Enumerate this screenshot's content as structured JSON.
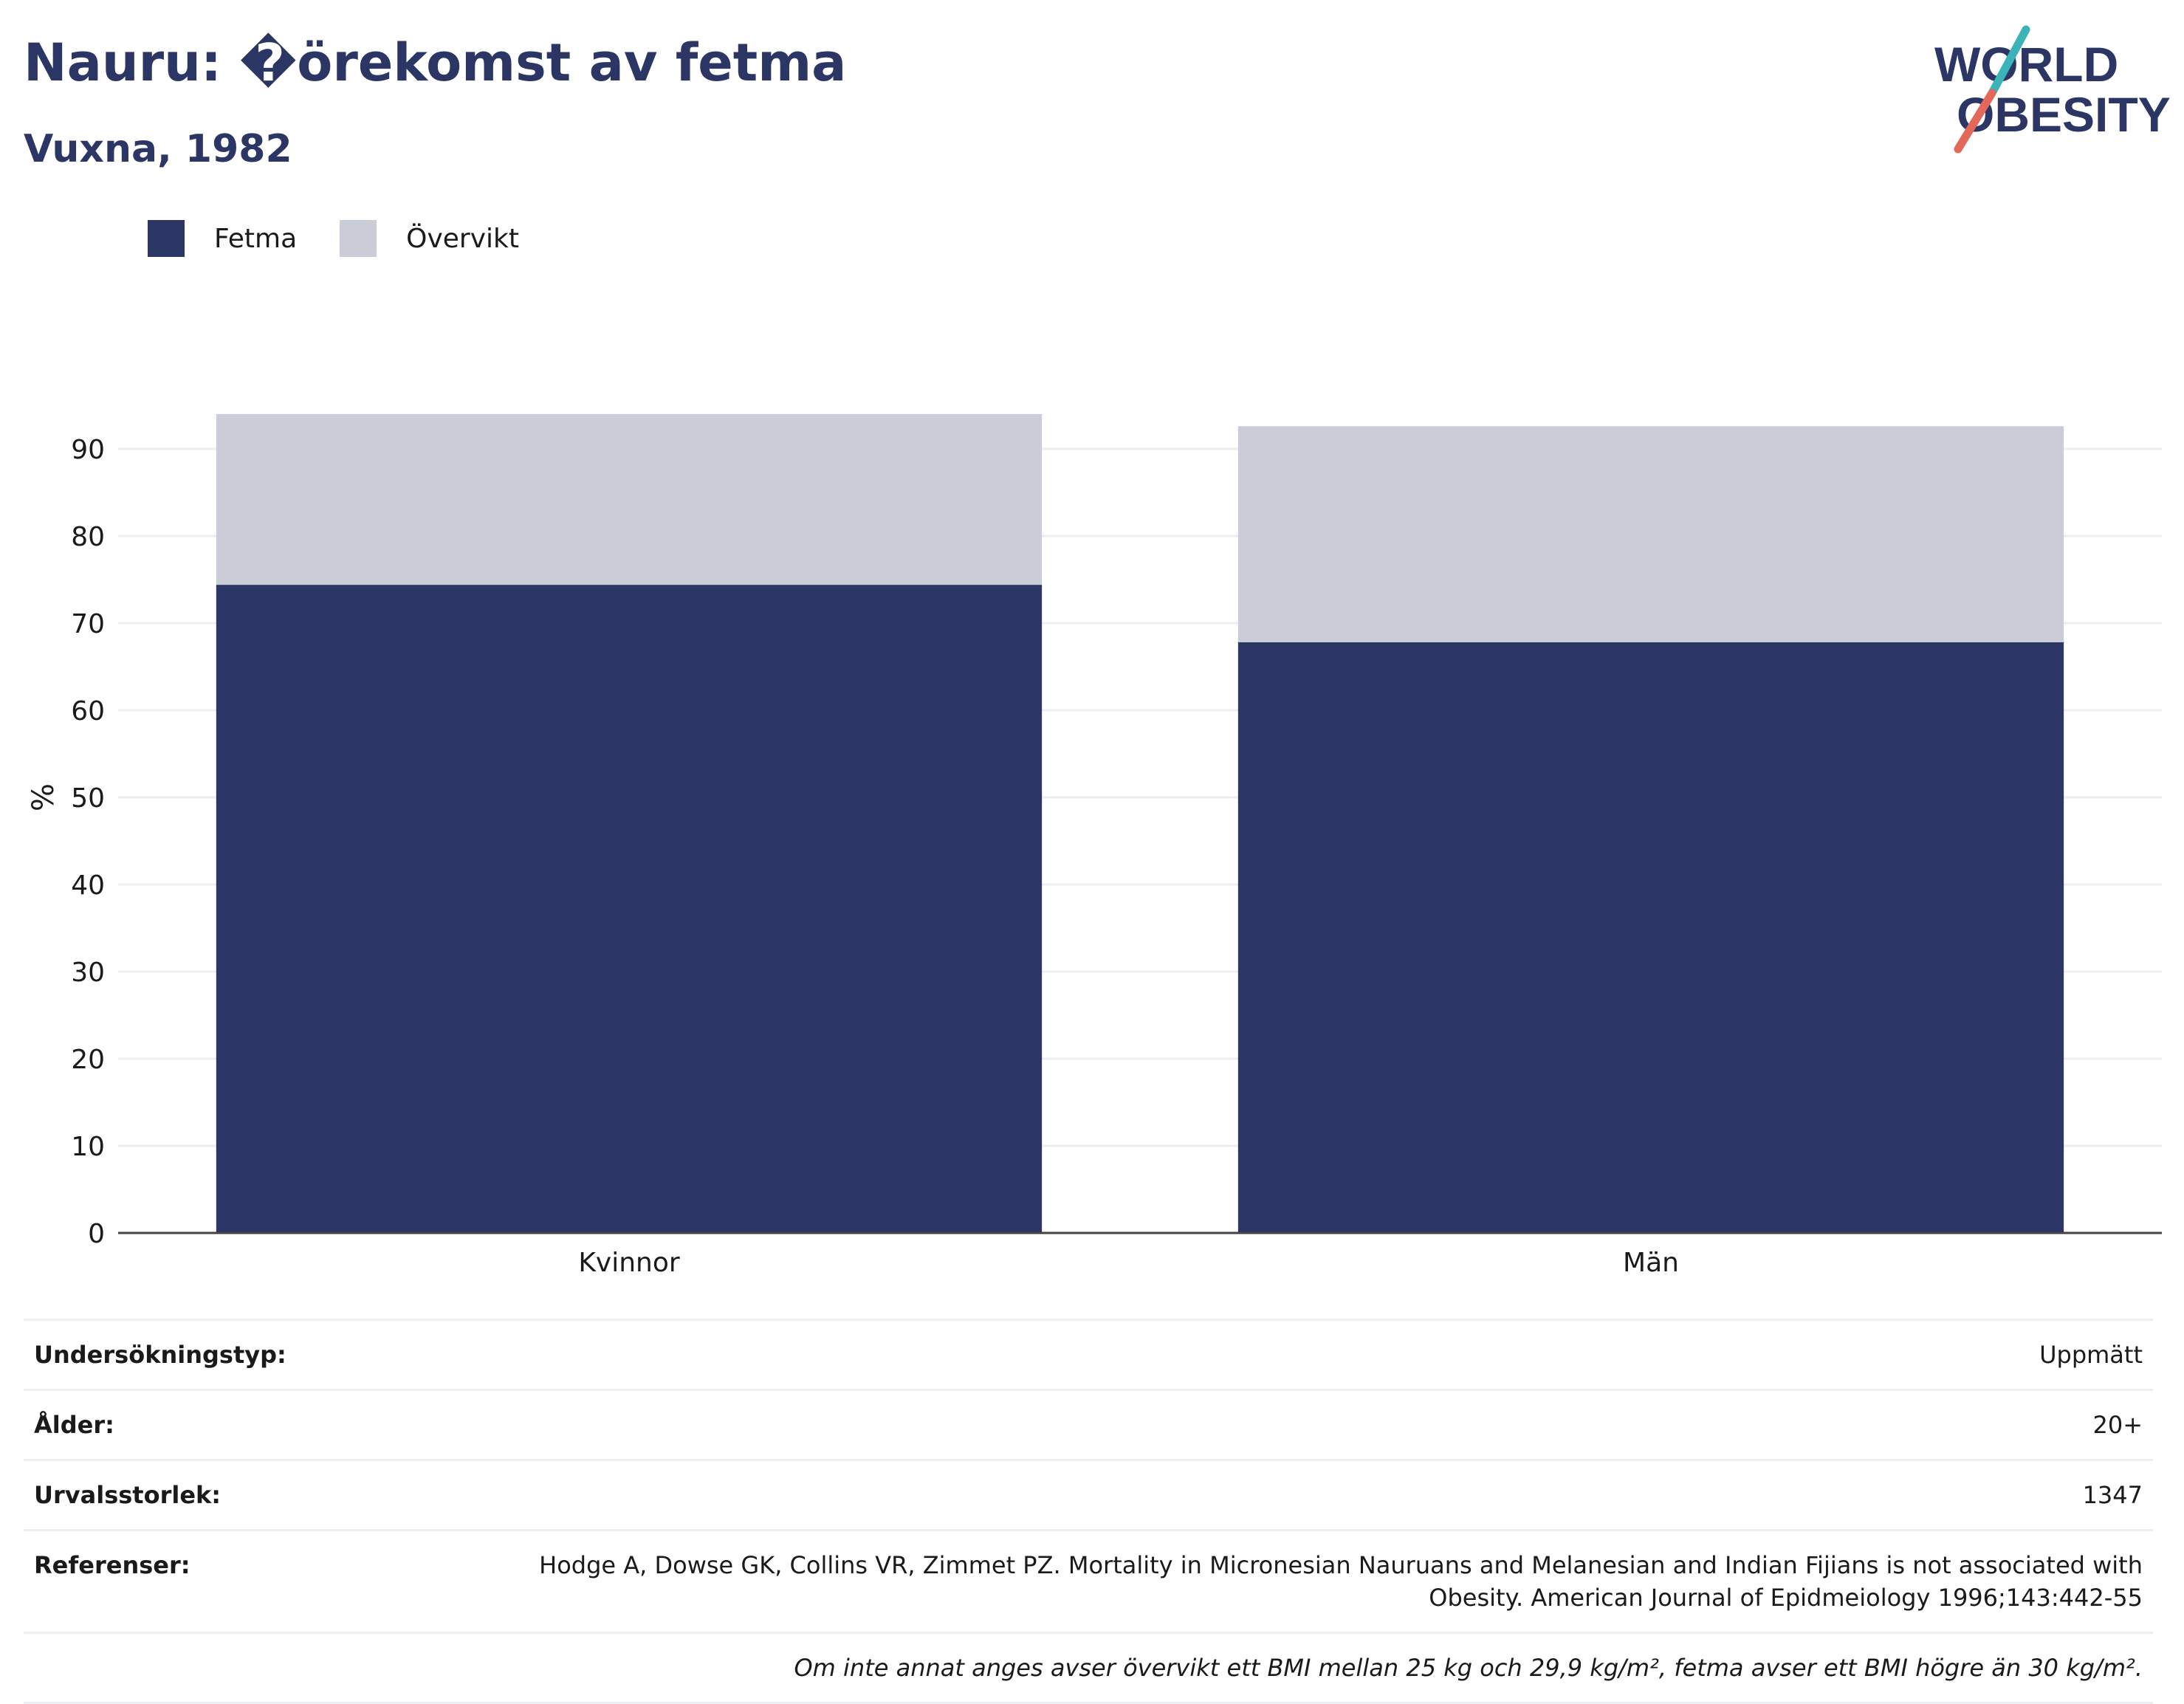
{
  "header": {
    "title": "Nauru: �örekomst av fetma",
    "subtitle": "Vuxna, 1982"
  },
  "logo": {
    "line1": "WORLD",
    "line2": "OBESITY",
    "brand_colors": {
      "text": "#2b3664",
      "slash_top": "#3bb3b8",
      "slash_bottom": "#e4685a"
    }
  },
  "colors": {
    "obesity": "#2b3664",
    "overweight": "#cacdd8",
    "grid": "#eceef2",
    "axis": "#444444"
  },
  "chart_data": {
    "type": "bar",
    "stacked": true,
    "categories": [
      "Kvinnor",
      "Män"
    ],
    "series": [
      {
        "name": "Fetma",
        "color": "#2b3664",
        "values": [
          74.4,
          67.8
        ]
      },
      {
        "name": "Övervikt",
        "color": "#cacdd8",
        "values": [
          19.6,
          24.8
        ]
      }
    ],
    "ylabel": "%",
    "xlabel": "",
    "yticks": [
      0,
      10,
      20,
      30,
      40,
      50,
      60,
      70,
      80,
      90
    ],
    "ylim": [
      0,
      100
    ],
    "grid": true,
    "legend_position": "top-left"
  },
  "info": {
    "survey_type_label": "Undersökningstyp:",
    "survey_type_value": "Uppmätt",
    "age_label": "Ålder:",
    "age_value": "20+",
    "sample_label": "Urvalsstorlek:",
    "sample_value": "1347",
    "references_label": "Referenser:",
    "references_value": "Hodge A, Dowse GK, Collins VR, Zimmet PZ. Mortality in Micronesian Nauruans and Melanesian and Indian Fijians is not associated with Obesity. American Journal of Epidmeiology 1996;143:442-55",
    "footnote": "Om inte annat anges avser övervikt ett BMI mellan 25 kg och 29,9 kg/m², fetma avser ett BMI högre än 30 kg/m²."
  }
}
